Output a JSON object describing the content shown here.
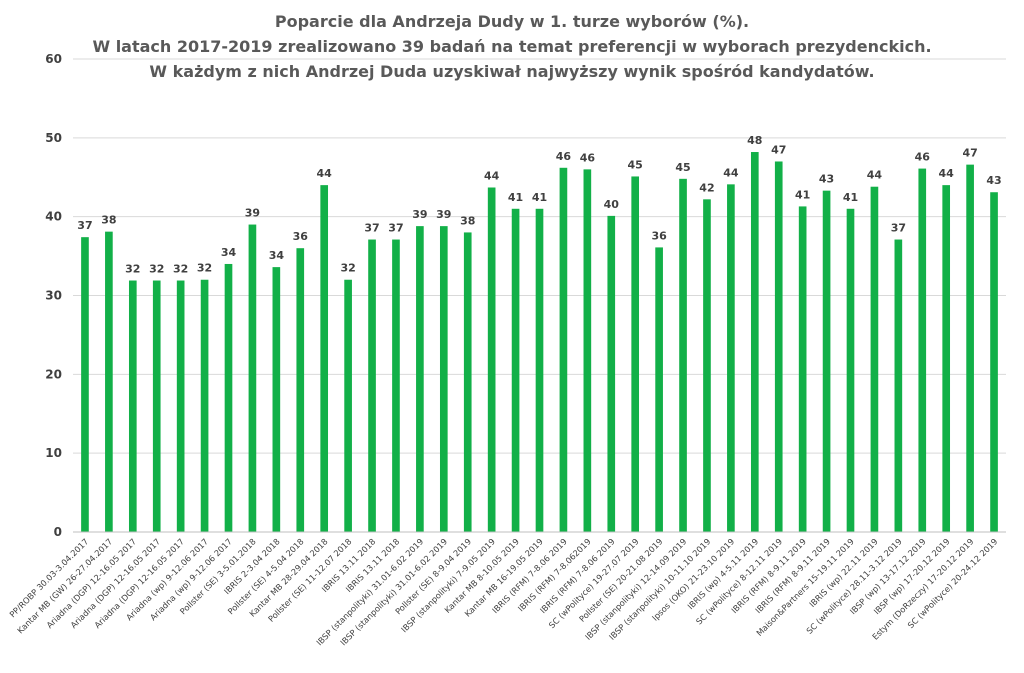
{
  "chart_data": {
    "type": "bar",
    "title": [
      "Poparcie dla Andrzeja Dudy w 1. turze wyborów (%).",
      "W latach 2017-2019 zrealizowano 39 badań na temat preferencji w wyborach prezydenckich.",
      "W każdym z nich Andrzej Duda uzyskiwał najwyższy wynik spośród kandydatów."
    ],
    "xlabel": "",
    "ylabel": "",
    "ylim": [
      0,
      60
    ],
    "yticks": [
      0,
      10,
      20,
      30,
      40,
      50,
      60
    ],
    "grid": true,
    "bar_color": "#12b048",
    "categories": [
      "PP/ROBP 30.03-3.04.2017",
      "Kantar MB (GW) 26-27.04.2017",
      "Ariadna (DGP) 12-16.05 2017",
      "Ariadna (DGP) 12-16.05 2017",
      "Ariadna (DGP) 12-16.05 2017",
      "Ariadna (wp) 9-12.06 2017",
      "Ariadna (wp) 9-12.06 2017",
      "Pollster (SE) 3-5.01.2018",
      "IBRIS 2-3.04 2018",
      "Pollster (SE) 4-5.04 2018",
      "Kantar MB 28-29.04 2018",
      "Pollster (SE) 11-12.07 2018",
      "IBRIS 13.11 2018",
      "IBRIS 13.11 2018",
      "IBSP (stanpolityki) 31.01-6.02 2019",
      "IBSP (stanpolityki) 31.01-6.02 2019",
      "Pollster (SE) 8-9.04 2019",
      "IBSP (stanpolityki) 7-9.05 2019",
      "Kantar MB 8-10.05 2019",
      "Kantar MB 16-19.05 2019",
      "IBRIS (RFM) 7-8.06 2019",
      "IBRIS (RFM) 7-8.062019",
      "IBRIS (RFM) 7-8.06 2019",
      "SC (wPolityce) 19-27.07 2019",
      "Pollster (SE) 20-21.08 2019",
      "IBSP (stanpolityki) 12-14.09 2019",
      "IBSP (stanpolityki) 10-11.10 2019",
      "Ipsos (OKO) 21-23.10 2019",
      "IBRIS (wp) 4-5.11 2019",
      "SC (wPolityce) 8-12.11 2019",
      "IBRIS (RFM) 8-9.11 2019",
      "IBRIS (RFM) 8-9.11 2019",
      "Maison&Partners 15-19.11 2019",
      "IBRIS (wp) 22.11 2019",
      "SC (wPolityce) 28.11-3.12 2019",
      "IBSP (wp) 13-17.12 2019",
      "IBSP (wp) 17-20.12 2019",
      "Estym (DoRzeczy) 17-20.12 2019",
      "SC (wPolityce) 20-24.12 2019"
    ],
    "values": [
      37.4,
      38.1,
      31.9,
      31.9,
      31.9,
      32,
      34,
      39,
      33.6,
      36,
      44,
      32,
      37.1,
      37.1,
      38.8,
      38.8,
      38,
      43.7,
      41,
      41,
      46.2,
      46,
      40.1,
      45.1,
      36.1,
      44.8,
      42.2,
      44.1,
      48.2,
      47,
      41.3,
      43.3,
      41,
      43.8,
      37.1,
      46.1,
      44,
      46.6,
      43.1
    ],
    "data_labels": [
      "37",
      "38",
      "32",
      "32",
      "32",
      "32",
      "34",
      "39",
      "34",
      "36",
      "44",
      "32",
      "37",
      "37",
      "39",
      "39",
      "38",
      "44",
      "41",
      "41",
      "46",
      "46",
      "40",
      "45",
      "36",
      "45",
      "42",
      "44",
      "48",
      "47",
      "41",
      "43",
      "41",
      "44",
      "37",
      "46",
      "44",
      "47",
      "43"
    ]
  }
}
